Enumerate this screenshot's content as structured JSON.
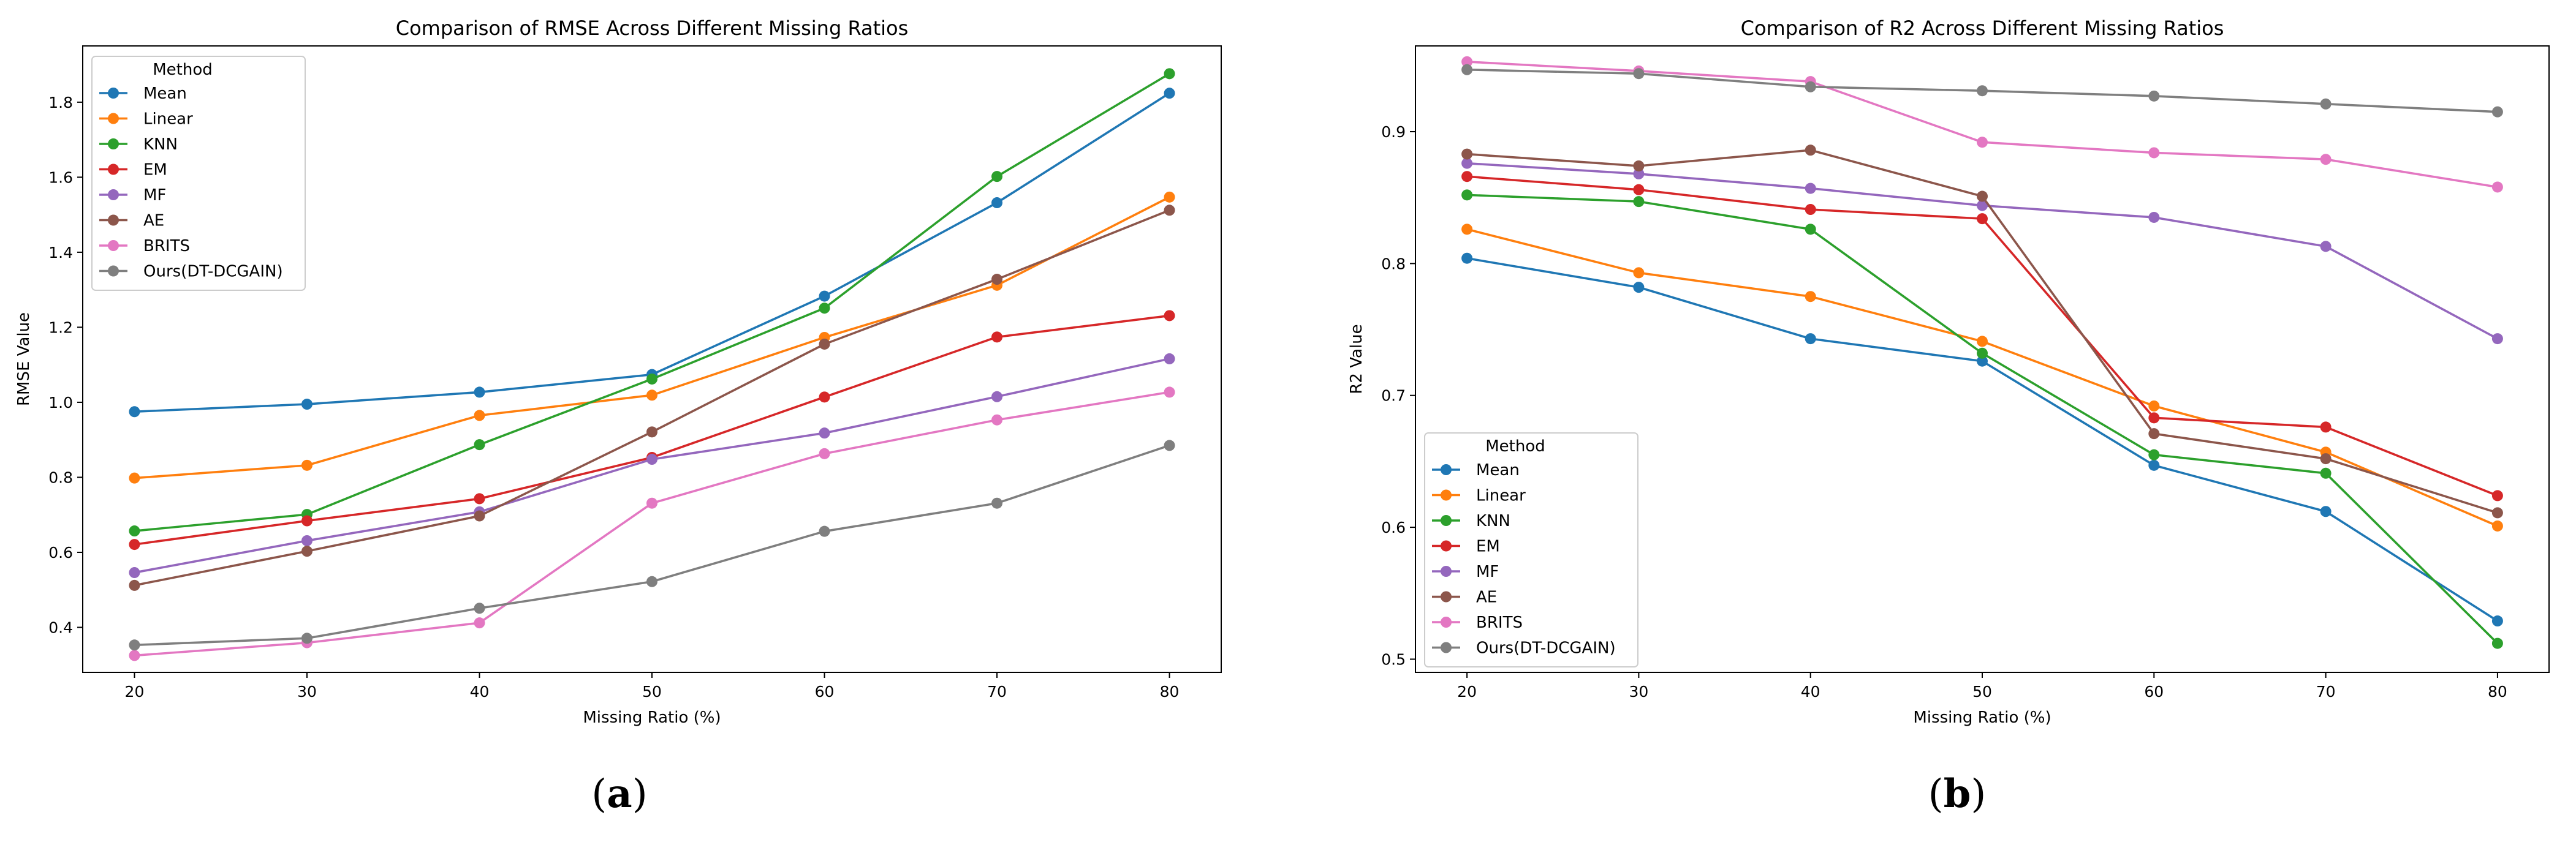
{
  "chart_data": [
    {
      "type": "line",
      "title": "Comparison of RMSE Across Different Missing Ratios",
      "xlabel": "Missing Ratio (%)",
      "ylabel": "RMSE Value",
      "x": [
        20,
        30,
        40,
        50,
        60,
        70,
        80
      ],
      "xticks": [
        "20",
        "30",
        "40",
        "50",
        "60",
        "70",
        "80"
      ],
      "xlim": [
        17,
        83
      ],
      "ylim": [
        0.28,
        1.95
      ],
      "yticks": [
        "0.4",
        "0.6",
        "0.8",
        "1.0",
        "1.2",
        "1.4",
        "1.6",
        "1.8"
      ],
      "legend_title": "Method",
      "legend_position": "upper-left",
      "caption": {
        "open": "(",
        "letter": "a",
        "close": ")"
      },
      "series": [
        {
          "name": "Mean",
          "color": "#1f77b4",
          "values": [
            0.975,
            0.995,
            1.027,
            1.074,
            1.283,
            1.532,
            1.824
          ]
        },
        {
          "name": "Linear",
          "color": "#ff7f0e",
          "values": [
            0.798,
            0.832,
            0.965,
            1.019,
            1.173,
            1.312,
            1.547
          ]
        },
        {
          "name": "KNN",
          "color": "#2ca02c",
          "values": [
            0.657,
            0.701,
            0.887,
            1.062,
            1.251,
            1.602,
            1.876
          ]
        },
        {
          "name": "EM",
          "color": "#d62728",
          "values": [
            0.621,
            0.684,
            0.743,
            0.853,
            1.014,
            1.174,
            1.231
          ]
        },
        {
          "name": "MF",
          "color": "#9467bd",
          "values": [
            0.546,
            0.631,
            0.708,
            0.848,
            0.918,
            1.015,
            1.116
          ]
        },
        {
          "name": "AE",
          "color": "#8c564b",
          "values": [
            0.512,
            0.603,
            0.697,
            0.921,
            1.155,
            1.328,
            1.512
          ]
        },
        {
          "name": "BRITS",
          "color": "#e377c2",
          "values": [
            0.325,
            0.359,
            0.412,
            0.731,
            0.863,
            0.953,
            1.027
          ]
        },
        {
          "name": "Ours(DT-DCGAIN)",
          "color": "#7f7f7f",
          "values": [
            0.353,
            0.371,
            0.451,
            0.522,
            0.656,
            0.731,
            0.885
          ]
        }
      ]
    },
    {
      "type": "line",
      "title": "Comparison of R2 Across Different Missing Ratios",
      "xlabel": "Missing Ratio (%)",
      "ylabel": "R2 Value",
      "x": [
        20,
        30,
        40,
        50,
        60,
        70,
        80
      ],
      "xticks": [
        "20",
        "30",
        "40",
        "50",
        "60",
        "70",
        "80"
      ],
      "xlim": [
        17,
        83
      ],
      "ylim": [
        0.49,
        0.965
      ],
      "yticks": [
        "0.5",
        "0.6",
        "0.7",
        "0.8",
        "0.9"
      ],
      "legend_title": "Method",
      "legend_position": "lower-left",
      "caption": {
        "open": "(",
        "letter": "b",
        "close": ")"
      },
      "series": [
        {
          "name": "Mean",
          "color": "#1f77b4",
          "values": [
            0.804,
            0.782,
            0.743,
            0.726,
            0.647,
            0.612,
            0.529
          ]
        },
        {
          "name": "Linear",
          "color": "#ff7f0e",
          "values": [
            0.826,
            0.793,
            0.775,
            0.741,
            0.692,
            0.657,
            0.601
          ]
        },
        {
          "name": "KNN",
          "color": "#2ca02c",
          "values": [
            0.852,
            0.847,
            0.826,
            0.732,
            0.655,
            0.641,
            0.512
          ]
        },
        {
          "name": "EM",
          "color": "#d62728",
          "values": [
            0.866,
            0.856,
            0.841,
            0.834,
            0.683,
            0.676,
            0.624
          ]
        },
        {
          "name": "MF",
          "color": "#9467bd",
          "values": [
            0.876,
            0.868,
            0.857,
            0.844,
            0.835,
            0.813,
            0.743
          ]
        },
        {
          "name": "AE",
          "color": "#8c564b",
          "values": [
            0.883,
            0.874,
            0.886,
            0.851,
            0.671,
            0.652,
            0.611
          ]
        },
        {
          "name": "BRITS",
          "color": "#e377c2",
          "values": [
            0.953,
            0.946,
            0.938,
            0.892,
            0.884,
            0.879,
            0.858
          ]
        },
        {
          "name": "Ours(DT-DCGAIN)",
          "color": "#7f7f7f",
          "values": [
            0.947,
            0.944,
            0.934,
            0.931,
            0.927,
            0.921,
            0.915
          ]
        }
      ]
    }
  ]
}
